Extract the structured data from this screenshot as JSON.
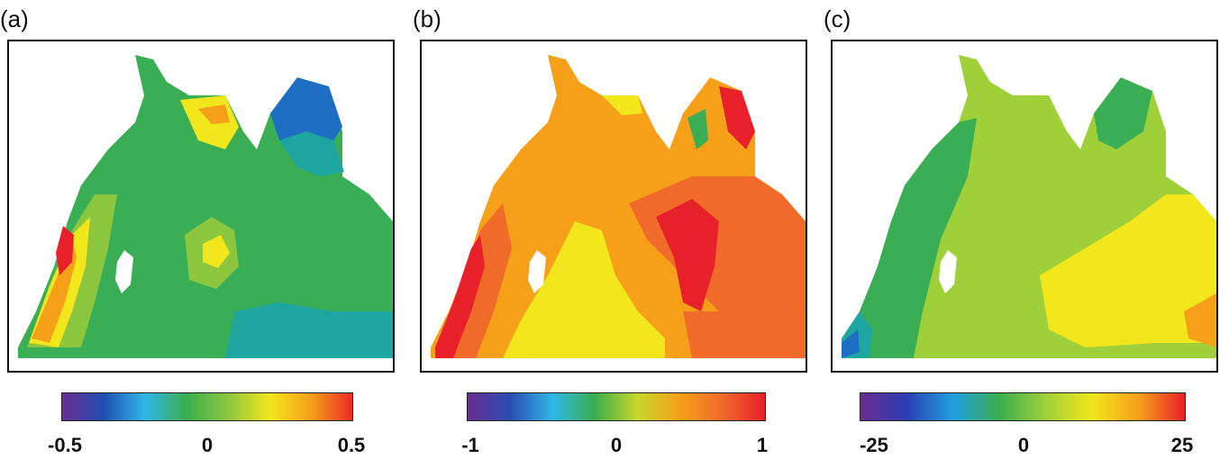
{
  "chart_data": [
    {
      "type": "heatmap",
      "panel_label": "(a)",
      "colorbar": {
        "ticks": [
          "-0.5",
          "0",
          "0.5"
        ],
        "min": -0.5,
        "max": 0.5,
        "colors": [
          "#6a2c91",
          "#1f4fb3",
          "#2fb7e6",
          "#3aae4e",
          "#8cc63f",
          "#f2e61c",
          "#f6a01a",
          "#ee2a24"
        ]
      }
    },
    {
      "type": "heatmap",
      "panel_label": "(b)",
      "colorbar": {
        "ticks": [
          "-1",
          "0",
          "1"
        ],
        "min": -1,
        "max": 1,
        "colors": [
          "#6a2c91",
          "#2a4db3",
          "#2fb7e6",
          "#3aae4e",
          "#c8d62a",
          "#f6a01a",
          "#f06a2a",
          "#e8202a"
        ]
      }
    },
    {
      "type": "heatmap",
      "panel_label": "(c)",
      "colorbar": {
        "ticks": [
          "-25",
          "0",
          "25"
        ],
        "min": -25,
        "max": 25,
        "colors": [
          "#6a2c91",
          "#2a3fb3",
          "#1f9fe0",
          "#3aae4e",
          "#9fd03a",
          "#f2e61c",
          "#f6a01a",
          "#e8202a"
        ]
      }
    }
  ],
  "palette": {
    "blue": "#1e6fc4",
    "teal": "#1fa6a0",
    "green": "#3aae55",
    "lightgreen": "#8cc63f",
    "yellow": "#f2e61c",
    "orange": "#f6a01a",
    "darkorange": "#f06a2a",
    "red": "#e8202a"
  }
}
